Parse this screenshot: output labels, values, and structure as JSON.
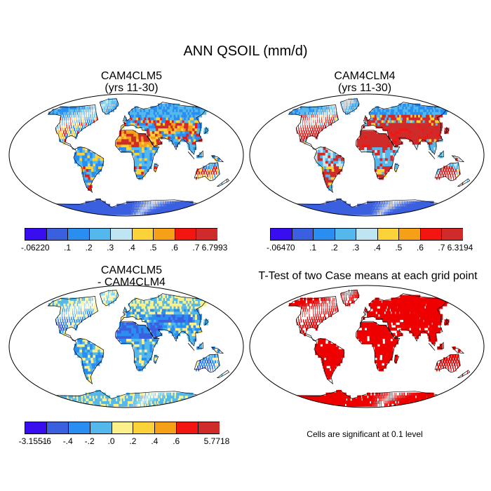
{
  "figure": {
    "title": "ANN QSOIL (mm/d)"
  },
  "panels": [
    {
      "id": "clm5",
      "title_line1": "CAM4CLM5",
      "title_line2": "(yrs 11-30)",
      "palette": [
        "#3a0df0",
        "#3a60e0",
        "#2a8ef0",
        "#55b8ec",
        "#bfe4f2",
        "#fcd23a",
        "#f6a01a",
        "#f31512",
        "#cf2b2b"
      ],
      "colorbar_labels": [
        "-.0622",
        ".0",
        ".1",
        ".2",
        ".3",
        ".4",
        ".5",
        ".6",
        ".7",
        "6.7993"
      ]
    },
    {
      "id": "clm4",
      "title_line1": "CAM4CLM4",
      "title_line2": "(yrs 11-30)",
      "palette": [
        "#3a0df0",
        "#3a60e0",
        "#2a8ef0",
        "#55b8ec",
        "#bfe4f2",
        "#fcd23a",
        "#f6a01a",
        "#f31512",
        "#cf2b2b"
      ],
      "colorbar_labels": [
        "-.0647",
        ".0",
        ".1",
        ".2",
        ".3",
        ".4",
        ".5",
        ".6",
        ".7",
        "6.3194"
      ]
    },
    {
      "id": "diff",
      "title_line1": "CAM4CLM5",
      "title_line2": "- CAM4CLM4",
      "palette": [
        "#3a0df0",
        "#3a60e0",
        "#2a8ef0",
        "#55b8ec",
        "#fbf08a",
        "#fcd23a",
        "#f6a01a",
        "#f31512",
        "#cf2b2b"
      ],
      "colorbar_labels": [
        "-3.1551",
        "-.6",
        "-.4",
        "-.2",
        ".0",
        ".2",
        ".4",
        ".6",
        "",
        "5.7718"
      ]
    },
    {
      "id": "ttest",
      "title_line1": "T-Test of two Case means at each grid point",
      "note": "Cells are significant at 0.1 level",
      "significant_color": "#ee0000"
    }
  ]
}
